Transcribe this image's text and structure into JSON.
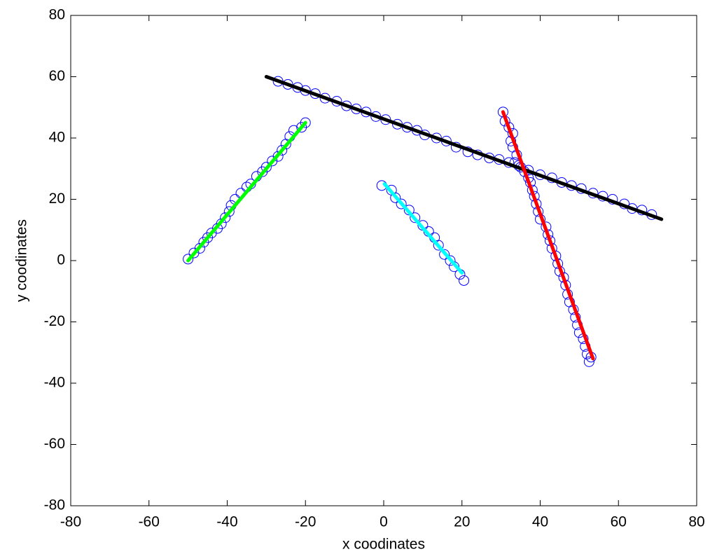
{
  "chart_data": {
    "type": "scatter",
    "xlabel": "x coodinates",
    "ylabel": "y coodinates",
    "xlim": [
      -80,
      80
    ],
    "ylim": [
      -80,
      80
    ],
    "xticks": [
      -80,
      -60,
      -40,
      -20,
      0,
      20,
      40,
      60,
      80
    ],
    "yticks": [
      -80,
      -60,
      -40,
      -20,
      0,
      20,
      40,
      60,
      80
    ],
    "series": [
      {
        "type": "scatter",
        "color": "#0000ff",
        "x": [
          -27,
          -24.5,
          -22,
          -20,
          -17.5,
          -15,
          -12,
          -9.5,
          -7,
          -4.5,
          -2,
          0.5,
          3.5,
          6,
          8.5,
          10.5,
          13.5,
          16,
          18.5,
          21.5,
          24,
          27,
          29.5,
          32,
          34.5,
          37,
          40,
          43,
          45.5,
          48,
          50.5,
          53.5,
          56,
          58.5,
          61.5,
          63.5,
          66,
          68.5,
          -50,
          -48.5,
          -47,
          -46,
          -45,
          -44,
          -42.5,
          -41.5,
          -40.5,
          -39.5,
          -39,
          -38,
          -36.5,
          -35,
          -34,
          -32.5,
          -31,
          -30,
          -28.5,
          -27,
          -26,
          -25,
          -24,
          -23,
          -21,
          -20,
          -0.5,
          2,
          3,
          4.5,
          6.5,
          8,
          10,
          11.5,
          13,
          14,
          15.5,
          17,
          18,
          19.5,
          20.5,
          30.5,
          31,
          32,
          33,
          32.5,
          33,
          34,
          33.5,
          35,
          36,
          37,
          37.5,
          38,
          38.5,
          39,
          39.5,
          40,
          41.5,
          42,
          42.5,
          43,
          44,
          44.5,
          45,
          46,
          46.5,
          47,
          47.5,
          48.5,
          49,
          49.5,
          50,
          51,
          51.5,
          52,
          53,
          52.5
        ],
        "values": [
          58.5,
          57.5,
          56.5,
          55.5,
          54.5,
          53,
          52,
          50.5,
          49.5,
          48.5,
          47,
          46,
          44.5,
          43.5,
          42.5,
          41,
          40,
          39,
          37,
          35.5,
          34.5,
          33.5,
          33,
          32,
          31,
          29.5,
          28,
          27,
          25.5,
          24.5,
          23.5,
          22,
          21,
          20,
          18.5,
          17,
          16.5,
          15,
          0.5,
          2.5,
          4,
          6,
          7.5,
          9,
          10.5,
          12,
          14,
          16,
          18,
          20,
          22,
          24,
          25,
          27.5,
          29,
          30.5,
          32.5,
          34,
          36,
          38,
          40.5,
          42.5,
          43.5,
          45,
          24.5,
          23,
          20.5,
          18.5,
          16.5,
          14,
          11.5,
          9.5,
          7.5,
          5,
          2,
          0,
          -2,
          -4.5,
          -6.5,
          48.5,
          45.5,
          43.5,
          41.5,
          39,
          37,
          34.5,
          32,
          30.5,
          29,
          27,
          25.5,
          23,
          21,
          18.5,
          16,
          13.5,
          11,
          8.5,
          6.5,
          4,
          1.5,
          -1,
          -3.5,
          -5.5,
          -8,
          -11,
          -13.5,
          -16,
          -18.5,
          -21,
          -23.5,
          -25.5,
          -28,
          -30.5,
          -31.5,
          -33
        ]
      },
      {
        "type": "line",
        "color": "#000000",
        "x": [
          -30,
          71
        ],
        "values": [
          60,
          13.5
        ]
      },
      {
        "type": "line",
        "color": "#00ff00",
        "x": [
          -50,
          -20
        ],
        "values": [
          0,
          45
        ]
      },
      {
        "type": "line",
        "color": "#00ffff",
        "x": [
          0.2,
          20
        ],
        "values": [
          25,
          -4
        ]
      },
      {
        "type": "line",
        "color": "#ff0000",
        "x": [
          30.5,
          53.5
        ],
        "values": [
          48.5,
          -32
        ]
      }
    ]
  }
}
